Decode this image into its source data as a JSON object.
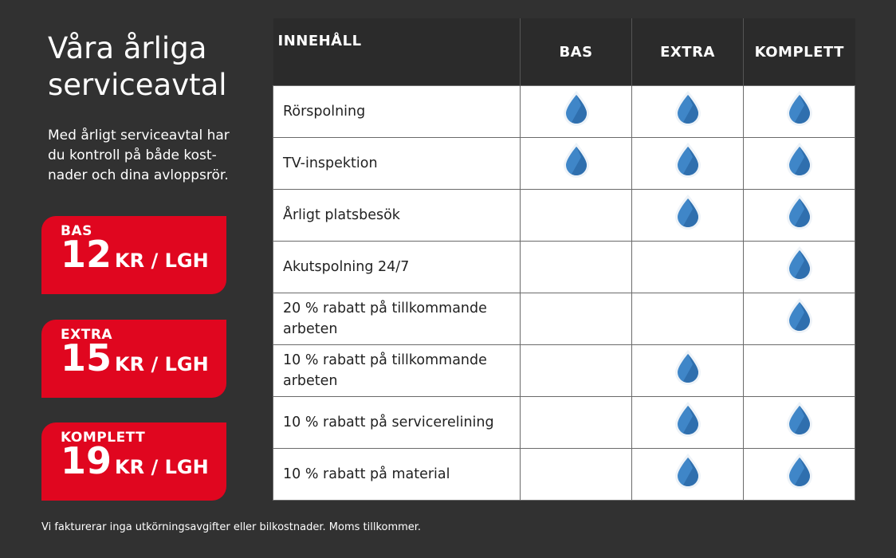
{
  "heading": {
    "title": "Våra årliga serviceavtal",
    "intro": "Med årligt serviceavtal har du kontroll på både kost­nader och dina avloppsrör."
  },
  "plans": [
    {
      "name": "BAS",
      "amount": "12",
      "unit": "KR / LGH"
    },
    {
      "name": "EXTRA",
      "amount": "15",
      "unit": "KR / LGH"
    },
    {
      "name": "KOMPLETT",
      "amount": "19",
      "unit": "KR / LGH"
    }
  ],
  "table": {
    "headers": [
      "INNEHÅLL",
      "BAS",
      "EXTRA",
      "KOMPLETT"
    ],
    "rows": [
      {
        "label": "Rörspolning",
        "included": [
          true,
          true,
          true
        ]
      },
      {
        "label": "TV-inspektion",
        "included": [
          true,
          true,
          true
        ]
      },
      {
        "label": "Årligt platsbesök",
        "included": [
          false,
          true,
          true
        ]
      },
      {
        "label": "Akutspolning 24/7",
        "included": [
          false,
          false,
          true
        ]
      },
      {
        "label": "20 % rabatt på tillkommande arbeten",
        "included": [
          false,
          false,
          true
        ]
      },
      {
        "label": "10 % rabatt på tillkommande arbeten",
        "included": [
          false,
          true,
          false
        ]
      },
      {
        "label": "10 % rabatt på servicerelining",
        "included": [
          false,
          true,
          true
        ]
      },
      {
        "label": "10 % rabatt på material",
        "included": [
          false,
          true,
          true
        ]
      }
    ],
    "check_icon": "water-drop-icon"
  },
  "footnote": "Vi fakturerar inga utkörningsavgifter eller bilkostnader. Moms tillkommer.",
  "colors": {
    "background": "#313131",
    "accent_red": "#e0061f",
    "drop_blue": "#3f86c8"
  }
}
